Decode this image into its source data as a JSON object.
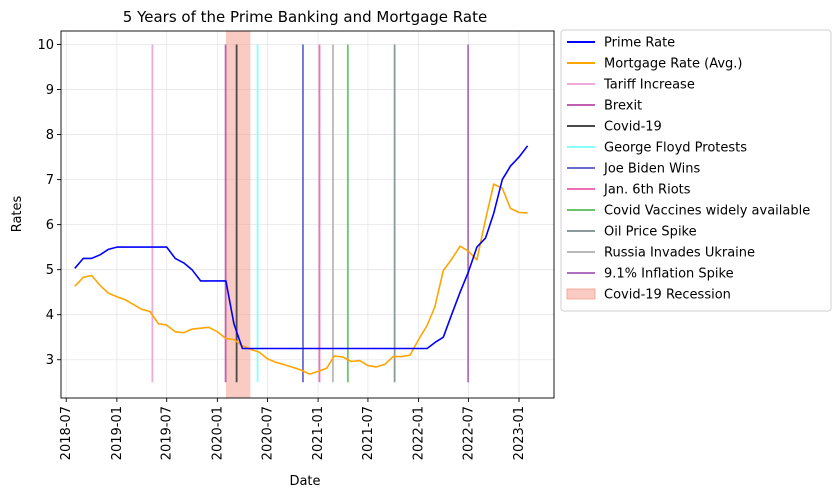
{
  "chart_data": {
    "type": "line",
    "title": "5 Years of the Prime Banking and Mortgage Rate",
    "xlabel": "Date",
    "ylabel": "Rates",
    "ylim": [
      2.15,
      10.3
    ],
    "xlim": [
      "2018-06-12",
      "2023-05-08"
    ],
    "grid": true,
    "legend_placement": "outside-right",
    "x_ticks": [
      "2018-07",
      "2019-01",
      "2019-07",
      "2020-01",
      "2020-07",
      "2021-01",
      "2021-07",
      "2022-01",
      "2022-07",
      "2023-01"
    ],
    "y_ticks": [
      3,
      4,
      5,
      6,
      7,
      8,
      9,
      10
    ],
    "series": [
      {
        "name": "Prime Rate",
        "color": "#0000ff",
        "points": [
          [
            "2018-08-01",
            5.03
          ],
          [
            "2018-09-01",
            5.25
          ],
          [
            "2018-10-01",
            5.25
          ],
          [
            "2018-11-01",
            5.33
          ],
          [
            "2018-12-01",
            5.45
          ],
          [
            "2019-01-01",
            5.5
          ],
          [
            "2019-06-01",
            5.5
          ],
          [
            "2019-07-01",
            5.5
          ],
          [
            "2019-08-01",
            5.25
          ],
          [
            "2019-09-01",
            5.15
          ],
          [
            "2019-10-01",
            5.0
          ],
          [
            "2019-11-01",
            4.75
          ],
          [
            "2020-02-01",
            4.75
          ],
          [
            "2020-03-01",
            3.8
          ],
          [
            "2020-04-01",
            3.25
          ],
          [
            "2021-12-01",
            3.25
          ],
          [
            "2022-01-01",
            3.25
          ],
          [
            "2022-02-01",
            3.25
          ],
          [
            "2022-03-01",
            3.38
          ],
          [
            "2022-04-01",
            3.5
          ],
          [
            "2022-05-01",
            4.0
          ],
          [
            "2022-06-01",
            4.5
          ],
          [
            "2022-07-01",
            4.95
          ],
          [
            "2022-08-01",
            5.5
          ],
          [
            "2022-09-01",
            5.7
          ],
          [
            "2022-10-01",
            6.25
          ],
          [
            "2022-11-01",
            7.0
          ],
          [
            "2022-12-01",
            7.3
          ],
          [
            "2023-01-01",
            7.5
          ],
          [
            "2023-02-01",
            7.75
          ]
        ]
      },
      {
        "name": "Mortgage Rate (Avg.)",
        "color": "#ffa500",
        "points": [
          [
            "2018-08-01",
            4.63
          ],
          [
            "2018-09-01",
            4.83
          ],
          [
            "2018-10-01",
            4.87
          ],
          [
            "2018-11-01",
            4.65
          ],
          [
            "2018-12-01",
            4.48
          ],
          [
            "2019-01-01",
            4.4
          ],
          [
            "2019-02-01",
            4.33
          ],
          [
            "2019-03-01",
            4.23
          ],
          [
            "2019-04-01",
            4.12
          ],
          [
            "2019-05-01",
            4.07
          ],
          [
            "2019-06-01",
            3.8
          ],
          [
            "2019-07-01",
            3.77
          ],
          [
            "2019-08-01",
            3.62
          ],
          [
            "2019-09-01",
            3.6
          ],
          [
            "2019-10-01",
            3.68
          ],
          [
            "2019-11-01",
            3.7
          ],
          [
            "2019-12-01",
            3.72
          ],
          [
            "2020-01-01",
            3.62
          ],
          [
            "2020-02-01",
            3.47
          ],
          [
            "2020-03-01",
            3.45
          ],
          [
            "2020-04-01",
            3.31
          ],
          [
            "2020-05-01",
            3.23
          ],
          [
            "2020-06-01",
            3.17
          ],
          [
            "2020-07-01",
            3.02
          ],
          [
            "2020-08-01",
            2.94
          ],
          [
            "2020-09-01",
            2.89
          ],
          [
            "2020-10-01",
            2.83
          ],
          [
            "2020-11-01",
            2.77
          ],
          [
            "2020-12-01",
            2.68
          ],
          [
            "2021-01-01",
            2.74
          ],
          [
            "2021-02-01",
            2.81
          ],
          [
            "2021-03-01",
            3.08
          ],
          [
            "2021-04-01",
            3.06
          ],
          [
            "2021-05-01",
            2.96
          ],
          [
            "2021-06-01",
            2.98
          ],
          [
            "2021-07-01",
            2.87
          ],
          [
            "2021-08-01",
            2.84
          ],
          [
            "2021-09-01",
            2.9
          ],
          [
            "2021-10-01",
            3.07
          ],
          [
            "2021-11-01",
            3.07
          ],
          [
            "2021-12-01",
            3.1
          ],
          [
            "2022-01-01",
            3.45
          ],
          [
            "2022-02-01",
            3.76
          ],
          [
            "2022-03-01",
            4.17
          ],
          [
            "2022-04-01",
            4.98
          ],
          [
            "2022-05-01",
            5.23
          ],
          [
            "2022-06-01",
            5.52
          ],
          [
            "2022-07-01",
            5.41
          ],
          [
            "2022-08-01",
            5.22
          ],
          [
            "2022-09-01",
            6.11
          ],
          [
            "2022-10-01",
            6.9
          ],
          [
            "2022-11-01",
            6.81
          ],
          [
            "2022-12-01",
            6.36
          ],
          [
            "2023-01-01",
            6.27
          ],
          [
            "2023-02-01",
            6.26
          ]
        ]
      }
    ],
    "events": [
      {
        "name": "Tariff Increase",
        "date": "2019-05-10",
        "ymin": 2.5,
        "ymax": 10,
        "color": "#f0a8dd"
      },
      {
        "name": "Brexit",
        "date": "2020-01-31",
        "ymin": 2.5,
        "ymax": 10,
        "color": "#c060b0"
      },
      {
        "name": "Covid-19",
        "date": "2020-03-11",
        "ymin": 2.5,
        "ymax": 10,
        "color": "#4a4a4a"
      },
      {
        "name": "George Floyd Protests",
        "date": "2020-05-26",
        "ymin": 2.5,
        "ymax": 10,
        "color": "#88ffff"
      },
      {
        "name": "Joe Biden Wins",
        "date": "2020-11-07",
        "ymin": 2.5,
        "ymax": 10,
        "color": "#6a6ad0"
      },
      {
        "name": "Jan. 6th Riots",
        "date": "2021-01-06",
        "ymin": 2.5,
        "ymax": 10,
        "color": "#f070b8"
      },
      {
        "name": "Covid Vaccines widely available",
        "date": "2021-04-19",
        "ymin": 2.5,
        "ymax": 10,
        "color": "#6cc46c"
      },
      {
        "name": "Oil Price Spike",
        "date": "2021-10-06",
        "ymin": 2.5,
        "ymax": 10,
        "color": "#8a9a9a"
      },
      {
        "name": "Russia Invades Ukraine",
        "date": "2021-02-24",
        "ymin": 2.5,
        "ymax": 10,
        "color": "#b8b8b8"
      },
      {
        "name": "9.1% Inflation Spike",
        "date": "2022-06-30",
        "ymin": 2.5,
        "ymax": 10,
        "color": "#b070c0"
      }
    ],
    "shaded_regions": [
      {
        "name": "Covid-19 Recession",
        "start": "2020-02-01",
        "end": "2020-04-30",
        "color": "#f4a090"
      }
    ],
    "legend": [
      {
        "name": "Prime Rate",
        "color": "#0000ff",
        "kind": "line"
      },
      {
        "name": "Mortgage Rate (Avg.)",
        "color": "#ffa500",
        "kind": "line"
      },
      {
        "name": "Tariff Increase",
        "color": "#f0a8dd",
        "kind": "line"
      },
      {
        "name": "Brexit",
        "color": "#c060b0",
        "kind": "line"
      },
      {
        "name": "Covid-19",
        "color": "#4a4a4a",
        "kind": "line"
      },
      {
        "name": "George Floyd Protests",
        "color": "#88ffff",
        "kind": "line"
      },
      {
        "name": "Joe Biden Wins",
        "color": "#6a6ad0",
        "kind": "line"
      },
      {
        "name": "Jan. 6th Riots",
        "color": "#f070b8",
        "kind": "line"
      },
      {
        "name": "Covid Vaccines widely available",
        "color": "#6cc46c",
        "kind": "line"
      },
      {
        "name": "Oil Price Spike",
        "color": "#8a9a9a",
        "kind": "line"
      },
      {
        "name": "Russia Invades Ukraine",
        "color": "#b8b8b8",
        "kind": "line"
      },
      {
        "name": "9.1% Inflation Spike",
        "color": "#b070c0",
        "kind": "line"
      },
      {
        "name": "Covid-19 Recession",
        "color": "#f4a090",
        "kind": "patch"
      }
    ]
  }
}
